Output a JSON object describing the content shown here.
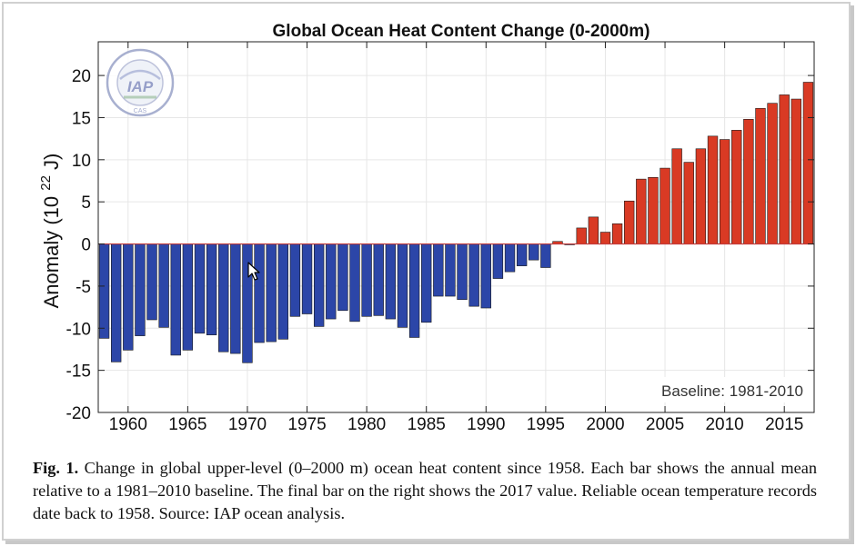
{
  "chart_data": {
    "type": "bar",
    "title": "Global Ocean Heat Content Change (0-2000m)",
    "ylabel": "Anomaly (10 22 J)",
    "ylabel_parts": {
      "main": "Anomaly (10",
      "exponent": "22",
      "unit": "J)"
    },
    "xlabel": "",
    "ylim": [
      -20,
      24
    ],
    "xlim": [
      1957.5,
      2017.5
    ],
    "yticks": [
      20,
      15,
      10,
      5,
      0,
      -5,
      -10,
      -15,
      -20
    ],
    "ytick_labels": [
      "20",
      "15",
      "10",
      "5",
      "0",
      "-5",
      "-10",
      "-15",
      "-20"
    ],
    "xticks": [
      1960,
      1965,
      1970,
      1975,
      1980,
      1985,
      1990,
      1995,
      2000,
      2005,
      2010,
      2015
    ],
    "xtick_labels": [
      "1960",
      "1965",
      "1970",
      "1975",
      "1980",
      "1985",
      "1990",
      "1995",
      "2000",
      "2005",
      "2010",
      "2015"
    ],
    "grid": true,
    "annotation": "Baseline: 1981-2010",
    "colors": {
      "negative": "#2c46a8",
      "positive": "#d93a24",
      "baseline": "#c23a3a"
    },
    "x": [
      1958,
      1959,
      1960,
      1961,
      1962,
      1963,
      1964,
      1965,
      1966,
      1967,
      1968,
      1969,
      1970,
      1971,
      1972,
      1973,
      1974,
      1975,
      1976,
      1977,
      1978,
      1979,
      1980,
      1981,
      1982,
      1983,
      1984,
      1985,
      1986,
      1987,
      1988,
      1989,
      1990,
      1991,
      1992,
      1993,
      1994,
      1995,
      1996,
      1997,
      1998,
      1999,
      2000,
      2001,
      2002,
      2003,
      2004,
      2005,
      2006,
      2007,
      2008,
      2009,
      2010,
      2011,
      2012,
      2013,
      2014,
      2015,
      2016,
      2017
    ],
    "values": [
      -11.2,
      -14.0,
      -12.6,
      -10.9,
      -9.0,
      -9.9,
      -13.2,
      -12.6,
      -10.6,
      -10.8,
      -12.8,
      -13.0,
      -14.1,
      -11.7,
      -11.6,
      -11.3,
      -8.6,
      -8.3,
      -9.8,
      -8.9,
      -7.9,
      -9.2,
      -8.6,
      -8.5,
      -8.9,
      -9.9,
      -11.1,
      -9.3,
      -6.2,
      -6.2,
      -6.6,
      -7.4,
      -7.6,
      -4.1,
      -3.3,
      -2.6,
      -1.9,
      -2.8,
      0.3,
      -0.1,
      1.9,
      3.2,
      1.4,
      2.4,
      5.1,
      7.7,
      7.9,
      9.0,
      11.3,
      9.7,
      11.3,
      12.8,
      12.4,
      13.5,
      14.8,
      16.1,
      16.7,
      17.7,
      17.2,
      19.2
    ]
  },
  "caption": {
    "label": "Fig. 1.",
    "text": " Change in global upper-level (0–2000 m) ocean heat content since 1958.  Each bar shows the annual mean relative to a 1981–2010 baseline. The final bar on the right shows the 2017 value. Reliable ocean temperature records date back to 1958. Source: IAP ocean analysis."
  },
  "logo": {
    "text": "IAP",
    "sub": "CAS"
  }
}
